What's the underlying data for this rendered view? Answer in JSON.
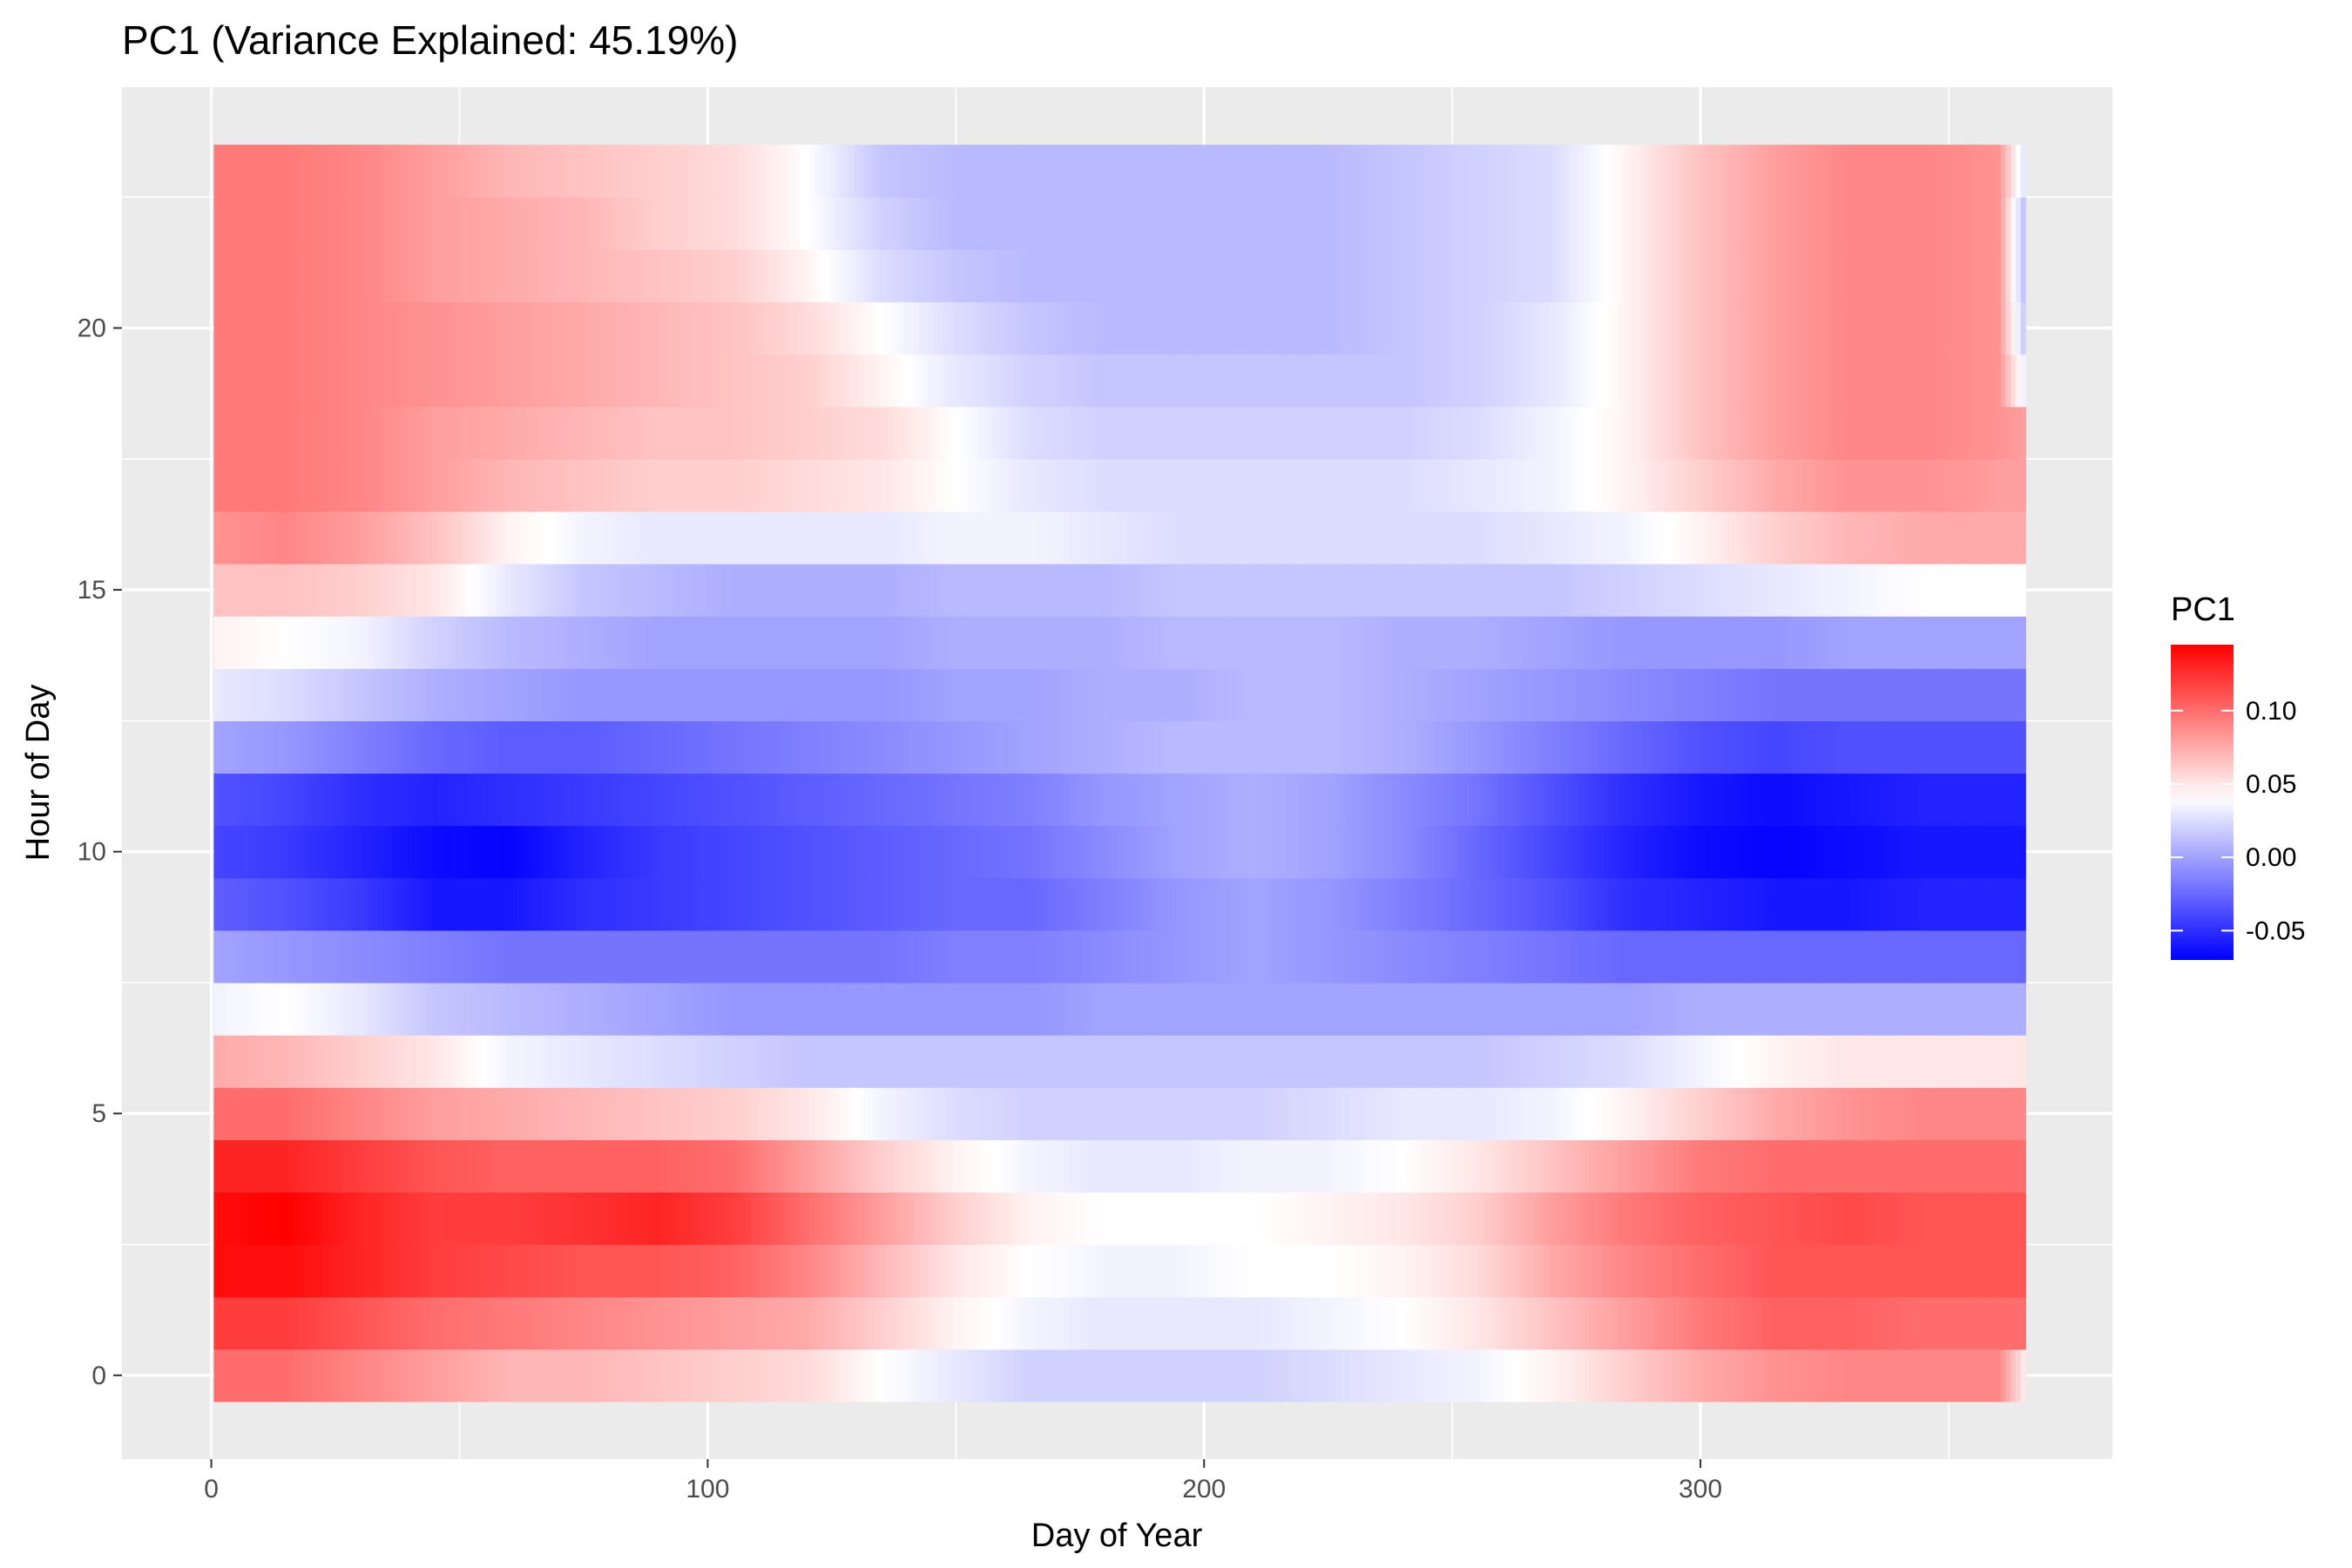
{
  "chart_data": {
    "type": "heatmap",
    "title": "PC1 (Variance Explained: 45.19%)",
    "xlabel": "Day of Year",
    "ylabel": "Hour of Day",
    "xlim": [
      -18,
      383
    ],
    "ylim": [
      -1.6,
      24.6
    ],
    "x_ticks": [
      0,
      100,
      200,
      300
    ],
    "y_ticks": [
      0,
      5,
      10,
      15,
      20
    ],
    "x_range": [
      1,
      365
    ],
    "hours": [
      0,
      1,
      2,
      3,
      4,
      5,
      6,
      7,
      8,
      9,
      10,
      11,
      12,
      13,
      14,
      15,
      16,
      17,
      18,
      19,
      20,
      21,
      22,
      23
    ],
    "grid": true,
    "legend": {
      "title": "PC1",
      "position": "right",
      "limits": [
        -0.07,
        0.145
      ],
      "ticks": [
        0.1,
        0.05,
        0.0,
        -0.05
      ],
      "tick_labels": [
        "0.10",
        "0.05",
        "0.00",
        "-0.05"
      ]
    },
    "colors": {
      "low": "#0000ff",
      "mid": "#ffffff",
      "high": "#ff0000",
      "midpoint": 0.04,
      "panel": "#ebebeb",
      "grid": "#ffffff"
    },
    "profile_knots_day": [
      1,
      15,
      30,
      45,
      60,
      75,
      90,
      105,
      120,
      135,
      150,
      165,
      180,
      195,
      210,
      225,
      240,
      255,
      270,
      285,
      300,
      315,
      330,
      345,
      360,
      365
    ],
    "profiles": [
      [
        0.1,
        0.1,
        0.09,
        0.08,
        0.07,
        0.07,
        0.065,
        0.06,
        0.055,
        0.04,
        0.03,
        0.02,
        0.02,
        0.02,
        0.02,
        0.025,
        0.03,
        0.035,
        0.045,
        0.06,
        0.075,
        0.085,
        0.09,
        0.09,
        0.09,
        0.05
      ],
      [
        0.12,
        0.12,
        0.11,
        0.1,
        0.095,
        0.09,
        0.085,
        0.08,
        0.075,
        0.06,
        0.045,
        0.035,
        0.03,
        0.03,
        0.03,
        0.035,
        0.04,
        0.05,
        0.065,
        0.08,
        0.095,
        0.105,
        0.105,
        0.1,
        0.1,
        0.1
      ],
      [
        0.14,
        0.14,
        0.13,
        0.12,
        0.115,
        0.11,
        0.11,
        0.105,
        0.09,
        0.07,
        0.05,
        0.04,
        0.035,
        0.035,
        0.04,
        0.04,
        0.045,
        0.055,
        0.075,
        0.09,
        0.1,
        0.11,
        0.11,
        0.11,
        0.11,
        0.11
      ],
      [
        0.14,
        0.145,
        0.13,
        0.12,
        0.12,
        0.125,
        0.13,
        0.12,
        0.1,
        0.08,
        0.06,
        0.045,
        0.04,
        0.04,
        0.04,
        0.045,
        0.05,
        0.06,
        0.08,
        0.095,
        0.105,
        0.11,
        0.115,
        0.11,
        0.11,
        0.11
      ],
      [
        0.13,
        0.13,
        0.12,
        0.11,
        0.105,
        0.105,
        0.105,
        0.1,
        0.08,
        0.06,
        0.045,
        0.035,
        0.03,
        0.03,
        0.035,
        0.035,
        0.04,
        0.05,
        0.065,
        0.08,
        0.095,
        0.1,
        0.1,
        0.1,
        0.1,
        0.1
      ],
      [
        0.1,
        0.1,
        0.09,
        0.08,
        0.075,
        0.07,
        0.065,
        0.06,
        0.05,
        0.035,
        0.025,
        0.02,
        0.02,
        0.02,
        0.02,
        0.025,
        0.03,
        0.03,
        0.035,
        0.045,
        0.06,
        0.075,
        0.085,
        0.09,
        0.09,
        0.09
      ],
      [
        0.075,
        0.07,
        0.06,
        0.05,
        0.035,
        0.03,
        0.025,
        0.02,
        0.015,
        0.015,
        0.015,
        0.015,
        0.015,
        0.015,
        0.015,
        0.015,
        0.015,
        0.015,
        0.02,
        0.025,
        0.035,
        0.045,
        0.05,
        0.05,
        0.05,
        0.05
      ],
      [
        0.035,
        0.04,
        0.03,
        0.015,
        0.01,
        0.005,
        0.0,
        -0.005,
        -0.005,
        -0.005,
        -0.005,
        -0.005,
        0.0,
        0.0,
        0.0,
        0.0,
        0.0,
        0.0,
        0.0,
        0.0,
        0.005,
        0.005,
        0.005,
        0.005,
        0.005,
        0.005
      ],
      [
        0.0,
        -0.005,
        -0.01,
        -0.015,
        -0.02,
        -0.02,
        -0.02,
        -0.02,
        -0.02,
        -0.02,
        -0.015,
        -0.015,
        -0.01,
        -0.005,
        0.0,
        -0.005,
        -0.01,
        -0.015,
        -0.02,
        -0.025,
        -0.025,
        -0.025,
        -0.025,
        -0.025,
        -0.025,
        -0.025
      ],
      [
        -0.03,
        -0.035,
        -0.045,
        -0.06,
        -0.06,
        -0.05,
        -0.045,
        -0.04,
        -0.035,
        -0.03,
        -0.025,
        -0.025,
        -0.015,
        -0.005,
        0.0,
        -0.005,
        -0.015,
        -0.025,
        -0.035,
        -0.05,
        -0.055,
        -0.06,
        -0.06,
        -0.055,
        -0.055,
        -0.055
      ],
      [
        -0.04,
        -0.045,
        -0.055,
        -0.065,
        -0.068,
        -0.055,
        -0.045,
        -0.04,
        -0.035,
        -0.03,
        -0.025,
        -0.02,
        -0.01,
        0.0,
        0.005,
        0.0,
        -0.01,
        -0.025,
        -0.04,
        -0.055,
        -0.065,
        -0.068,
        -0.065,
        -0.06,
        -0.06,
        -0.06
      ],
      [
        -0.035,
        -0.04,
        -0.05,
        -0.055,
        -0.05,
        -0.045,
        -0.04,
        -0.035,
        -0.03,
        -0.025,
        -0.02,
        -0.015,
        -0.005,
        0.0,
        0.005,
        0.0,
        -0.01,
        -0.02,
        -0.035,
        -0.05,
        -0.06,
        -0.065,
        -0.06,
        -0.055,
        -0.055,
        -0.055
      ],
      [
        0.0,
        -0.005,
        -0.015,
        -0.025,
        -0.03,
        -0.03,
        -0.025,
        -0.02,
        -0.015,
        -0.01,
        -0.005,
        0.0,
        0.005,
        0.01,
        0.01,
        0.01,
        0.005,
        -0.005,
        -0.015,
        -0.025,
        -0.035,
        -0.04,
        -0.035,
        -0.035,
        -0.035,
        -0.035
      ],
      [
        0.03,
        0.025,
        0.015,
        0.005,
        0.0,
        -0.005,
        -0.005,
        -0.005,
        -0.005,
        -0.005,
        0.0,
        0.0,
        0.005,
        0.005,
        0.01,
        0.01,
        0.005,
        0.0,
        -0.005,
        -0.01,
        -0.015,
        -0.02,
        -0.02,
        -0.02,
        -0.02,
        -0.02
      ],
      [
        0.045,
        0.04,
        0.035,
        0.02,
        0.01,
        0.005,
        0.0,
        0.0,
        0.0,
        0.0,
        0.005,
        0.005,
        0.005,
        0.01,
        0.01,
        0.01,
        0.005,
        0.005,
        0.0,
        -0.005,
        -0.005,
        -0.005,
        0.0,
        0.0,
        0.0,
        0.0
      ],
      [
        0.065,
        0.065,
        0.06,
        0.05,
        0.03,
        0.015,
        0.01,
        0.005,
        0.005,
        0.005,
        0.01,
        0.01,
        0.01,
        0.015,
        0.015,
        0.015,
        0.015,
        0.015,
        0.015,
        0.02,
        0.025,
        0.03,
        0.035,
        0.04,
        0.04,
        0.04
      ],
      [
        0.085,
        0.09,
        0.08,
        0.065,
        0.045,
        0.035,
        0.03,
        0.03,
        0.03,
        0.03,
        0.035,
        0.035,
        0.03,
        0.025,
        0.025,
        0.025,
        0.025,
        0.025,
        0.03,
        0.035,
        0.045,
        0.06,
        0.07,
        0.075,
        0.075,
        0.075
      ],
      [
        0.095,
        0.095,
        0.09,
        0.08,
        0.07,
        0.065,
        0.06,
        0.06,
        0.055,
        0.05,
        0.04,
        0.03,
        0.025,
        0.025,
        0.025,
        0.025,
        0.025,
        0.03,
        0.035,
        0.045,
        0.06,
        0.075,
        0.085,
        0.085,
        0.08,
        0.08
      ],
      [
        0.095,
        0.095,
        0.09,
        0.08,
        0.075,
        0.07,
        0.065,
        0.065,
        0.06,
        0.055,
        0.04,
        0.025,
        0.02,
        0.02,
        0.02,
        0.02,
        0.02,
        0.025,
        0.035,
        0.045,
        0.065,
        0.08,
        0.09,
        0.09,
        0.085,
        0.08
      ],
      [
        0.095,
        0.095,
        0.09,
        0.085,
        0.08,
        0.075,
        0.07,
        0.065,
        0.06,
        0.045,
        0.03,
        0.02,
        0.015,
        0.015,
        0.015,
        0.015,
        0.015,
        0.02,
        0.03,
        0.045,
        0.065,
        0.08,
        0.09,
        0.09,
        0.085,
        0.035
      ],
      [
        0.095,
        0.095,
        0.09,
        0.085,
        0.08,
        0.075,
        0.07,
        0.065,
        0.055,
        0.04,
        0.025,
        0.015,
        0.01,
        0.01,
        0.01,
        0.01,
        0.015,
        0.02,
        0.03,
        0.045,
        0.065,
        0.08,
        0.09,
        0.09,
        0.085,
        0.02
      ],
      [
        0.095,
        0.095,
        0.09,
        0.08,
        0.075,
        0.07,
        0.065,
        0.06,
        0.045,
        0.025,
        0.015,
        0.01,
        0.01,
        0.01,
        0.01,
        0.01,
        0.015,
        0.02,
        0.025,
        0.045,
        0.065,
        0.08,
        0.09,
        0.09,
        0.085,
        0.015
      ],
      [
        0.095,
        0.095,
        0.09,
        0.08,
        0.075,
        0.07,
        0.06,
        0.055,
        0.04,
        0.02,
        0.01,
        0.01,
        0.01,
        0.01,
        0.01,
        0.01,
        0.015,
        0.02,
        0.025,
        0.045,
        0.065,
        0.08,
        0.09,
        0.09,
        0.085,
        0.015
      ],
      [
        0.095,
        0.095,
        0.09,
        0.08,
        0.07,
        0.065,
        0.06,
        0.055,
        0.04,
        0.015,
        0.01,
        0.01,
        0.01,
        0.01,
        0.01,
        0.01,
        0.015,
        0.02,
        0.025,
        0.045,
        0.065,
        0.08,
        0.09,
        0.09,
        0.085,
        0.03
      ]
    ]
  }
}
